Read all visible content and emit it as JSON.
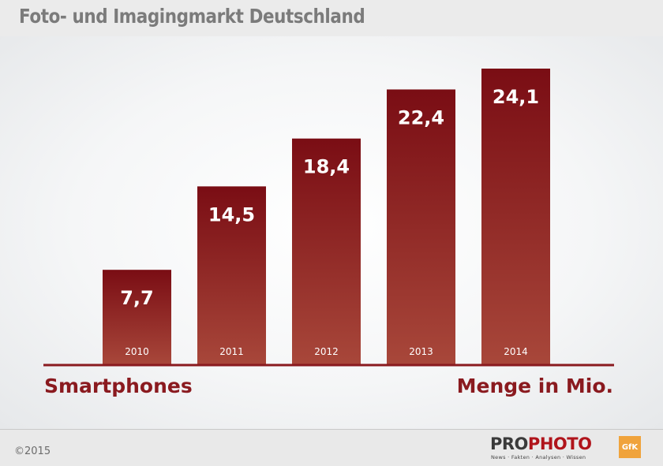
{
  "header": {
    "title": "Foto- und Imagingmarkt Deutschland"
  },
  "chart_data": {
    "type": "bar",
    "categories": [
      "2010",
      "2011",
      "2012",
      "2013",
      "2014"
    ],
    "values": [
      7.7,
      14.5,
      18.4,
      22.4,
      24.1
    ],
    "value_labels": [
      "7,7",
      "14,5",
      "18,4",
      "22,4",
      "24,1"
    ],
    "series_label": "Smartphones",
    "unit_label": "Menge in Mio.",
    "ylim": [
      0,
      25
    ],
    "grid": false,
    "legend": "none",
    "colors": {
      "bar_top": "#7a0d14",
      "bar_bottom": "#a8473a",
      "axis": "#8a1a1f",
      "label": "#8a1a1f"
    }
  },
  "footer": {
    "copyright": "©2015",
    "brand_left": "PRO",
    "brand_right": "PHOTO",
    "brand_tagline": "News · Fakten · Analysen · Wissen",
    "partner_logo": "GfK"
  }
}
